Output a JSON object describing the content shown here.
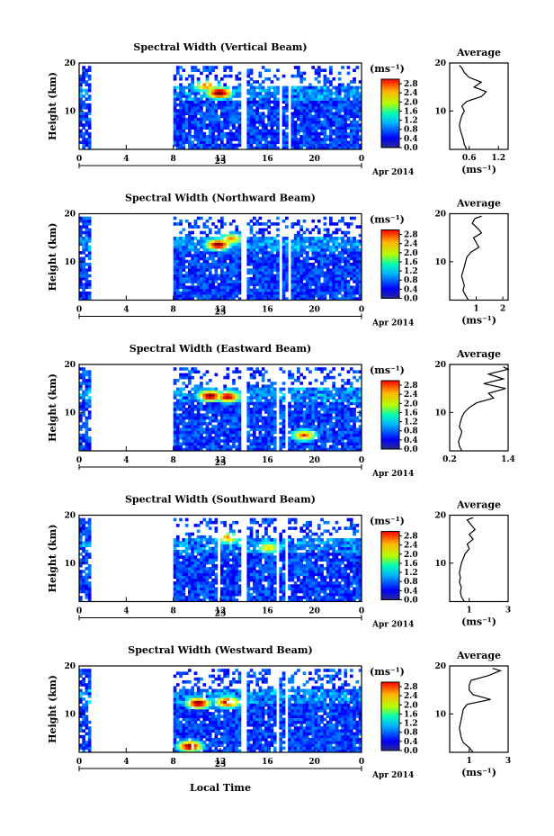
{
  "figure": {
    "xlabel_bottom": "Local Time"
  },
  "chart_data": [
    {
      "type": "heatmap",
      "title": "Spectral Width (Vertical Beam)",
      "ylabel": "Height (km)",
      "ylim": [
        2,
        20
      ],
      "xlim": [
        0,
        24
      ],
      "x_ticks": [
        "0",
        "4",
        "8",
        "12",
        "16",
        "20",
        "0"
      ],
      "y_ticks": [
        "10",
        "20"
      ],
      "date_label": "23",
      "month_label": "Apr 2014",
      "colorbar": {
        "unit": "(ms⁻¹)",
        "ticks": [
          "0.0",
          "0.4",
          "0.8",
          "1.2",
          "1.6",
          "2.0",
          "2.4",
          "2.8"
        ],
        "range": [
          0,
          3.0
        ]
      },
      "data_gaps_hours": [
        [
          1,
          8
        ],
        [
          13.6,
          14.1
        ],
        [
          16.8,
          17.1
        ],
        [
          17.6,
          17.8
        ]
      ],
      "hotspots": [
        {
          "x": 11.8,
          "y": 13.5,
          "value": 3.0
        },
        {
          "x": 10.7,
          "y": 15,
          "value": 2.0
        }
      ],
      "average_profile": {
        "title": "Average",
        "xlabel": "(ms⁻¹)",
        "xlim": [
          0.2,
          1.4
        ],
        "x_ticks": [
          "0.6",
          "1.2"
        ],
        "y_ticks": [
          "10",
          "20"
        ],
        "height_km": [
          2,
          3,
          4,
          5,
          6,
          7,
          8,
          9,
          10,
          11,
          12,
          13,
          14,
          15,
          16,
          17,
          18,
          19,
          19.5
        ],
        "width_ms": [
          0.55,
          0.5,
          0.48,
          0.45,
          0.42,
          0.4,
          0.42,
          0.45,
          0.5,
          0.45,
          0.55,
          0.85,
          0.95,
          0.7,
          0.85,
          0.6,
          0.5,
          0.45,
          0.4
        ]
      }
    },
    {
      "type": "heatmap",
      "title": "Spectral Width (Northward Beam)",
      "ylabel": "Height (km)",
      "ylim": [
        2,
        20
      ],
      "xlim": [
        0,
        24
      ],
      "x_ticks": [
        "0",
        "4",
        "8",
        "12",
        "16",
        "20",
        "0"
      ],
      "y_ticks": [
        "10",
        "20"
      ],
      "date_label": "23",
      "month_label": "Apr 2014",
      "colorbar": {
        "unit": "(ms⁻¹)",
        "ticks": [
          "0.0",
          "0.4",
          "0.8",
          "1.2",
          "1.6",
          "2.0",
          "2.4",
          "2.8"
        ],
        "range": [
          0,
          3.0
        ]
      },
      "data_gaps_hours": [
        [
          1,
          8
        ],
        [
          13.6,
          14.1
        ],
        [
          16.8,
          17.1
        ],
        [
          17.6,
          17.8
        ]
      ],
      "hotspots": [
        {
          "x": 11.7,
          "y": 13.3,
          "value": 2.8
        },
        {
          "x": 12.8,
          "y": 14.5,
          "value": 1.8
        }
      ],
      "average_profile": {
        "title": "Average",
        "xlabel": "(ms⁻¹)",
        "xlim": [
          0,
          2.2
        ],
        "x_ticks": [
          "1",
          "2"
        ],
        "y_ticks": [
          "10",
          "20"
        ],
        "height_km": [
          2,
          3,
          4,
          5,
          6,
          7,
          8,
          9,
          10,
          11,
          12,
          13,
          14,
          15,
          16,
          17,
          18,
          19,
          19.5
        ],
        "width_ms": [
          0.7,
          0.6,
          0.5,
          0.55,
          0.5,
          0.45,
          0.5,
          0.55,
          0.6,
          0.65,
          0.8,
          1.1,
          1.0,
          0.9,
          1.2,
          1.05,
          0.85,
          0.95,
          1.2
        ]
      }
    },
    {
      "type": "heatmap",
      "title": "Spectral Width (Eastward Beam)",
      "ylabel": "Height (km)",
      "ylim": [
        2,
        20
      ],
      "xlim": [
        0,
        24
      ],
      "x_ticks": [
        "0",
        "4",
        "8",
        "12",
        "16",
        "20",
        "0"
      ],
      "y_ticks": [
        "10",
        "20"
      ],
      "date_label": "23",
      "month_label": "Apr 2014",
      "colorbar": {
        "unit": "(ms⁻¹)",
        "ticks": [
          "0.0",
          "0.4",
          "0.8",
          "1.2",
          "1.6",
          "2.0",
          "2.4",
          "2.8"
        ],
        "range": [
          0,
          3.0
        ]
      },
      "data_gaps_hours": [
        [
          1,
          8
        ],
        [
          13.6,
          14.1
        ],
        [
          16.6,
          16.9
        ],
        [
          17.4,
          17.7
        ]
      ],
      "hotspots": [
        {
          "x": 11,
          "y": 13.2,
          "value": 2.8
        },
        {
          "x": 12.5,
          "y": 13,
          "value": 2.6
        },
        {
          "x": 19,
          "y": 5,
          "value": 2.0
        }
      ],
      "average_profile": {
        "title": "Average",
        "xlabel": "",
        "xlim": [
          0.2,
          1.4
        ],
        "x_ticks": [
          "0.2",
          "1.4"
        ],
        "y_ticks": [
          "10",
          "20"
        ],
        "height_km": [
          2,
          3,
          4,
          5,
          6,
          7,
          8,
          9,
          10,
          11,
          12,
          13,
          14,
          15,
          16,
          17,
          18,
          19,
          19.5
        ],
        "width_ms": [
          0.45,
          0.4,
          0.38,
          0.42,
          0.45,
          0.4,
          0.42,
          0.45,
          0.5,
          0.6,
          0.75,
          1.1,
          1.0,
          1.35,
          0.9,
          1.3,
          1.0,
          1.4,
          1.3
        ]
      }
    },
    {
      "type": "heatmap",
      "title": "Spectral Width (Southward Beam)",
      "ylabel": "Height (km)",
      "ylim": [
        2,
        20
      ],
      "xlim": [
        0,
        24
      ],
      "x_ticks": [
        "0",
        "4",
        "8",
        "12",
        "16",
        "20",
        "0"
      ],
      "y_ticks": [
        "10",
        "20"
      ],
      "date_label": "23",
      "month_label": "Apr 2014",
      "colorbar": {
        "unit": "(ms⁻¹)",
        "ticks": [
          "0.0",
          "0.4",
          "0.8",
          "1.2",
          "1.6",
          "2.0",
          "2.4",
          "2.8"
        ],
        "range": [
          0,
          3.0
        ]
      },
      "data_gaps_hours": [
        [
          1,
          8
        ],
        [
          11.6,
          11.8
        ],
        [
          13.6,
          14.1
        ],
        [
          16.6,
          16.9
        ],
        [
          17.5,
          17.7
        ]
      ],
      "hotspots": [
        {
          "x": 12.5,
          "y": 15,
          "value": 1.8
        },
        {
          "x": 16,
          "y": 13,
          "value": 1.6
        }
      ],
      "average_profile": {
        "title": "Average",
        "xlabel": "(ms⁻¹)",
        "xlim": [
          0,
          3
        ],
        "x_ticks": [
          "1",
          "3"
        ],
        "y_ticks": [
          "10",
          "20"
        ],
        "height_km": [
          2,
          3,
          4,
          5,
          6,
          7,
          8,
          9,
          10,
          11,
          12,
          13,
          14,
          15,
          16,
          17,
          18,
          19,
          19.5
        ],
        "width_ms": [
          0.75,
          0.6,
          0.55,
          0.6,
          0.5,
          0.55,
          0.5,
          0.55,
          0.6,
          0.7,
          0.8,
          1.0,
          0.9,
          1.2,
          1.0,
          1.3,
          1.1,
          0.9,
          1.2
        ]
      }
    },
    {
      "type": "heatmap",
      "title": "Spectral Width (Westward Beam)",
      "ylabel": "Height (km)",
      "ylim": [
        2,
        20
      ],
      "xlim": [
        0,
        24
      ],
      "x_ticks": [
        "0",
        "4",
        "8",
        "12",
        "16",
        "20",
        "0"
      ],
      "y_ticks": [
        "10",
        "20"
      ],
      "date_label": "23",
      "month_label": "Apr 2014",
      "colorbar": {
        "unit": "(ms⁻¹)",
        "ticks": [
          "0.0",
          "0.4",
          "0.8",
          "1.2",
          "1.6",
          "2.0",
          "2.4",
          "2.8"
        ],
        "range": [
          0,
          3.0
        ]
      },
      "data_gaps_hours": [
        [
          1,
          8
        ],
        [
          13.6,
          14.1
        ],
        [
          16.7,
          17.0
        ],
        [
          17.5,
          17.7
        ]
      ],
      "hotspots": [
        {
          "x": 10,
          "y": 12,
          "value": 2.8
        },
        {
          "x": 12.5,
          "y": 12.2,
          "value": 2.6
        },
        {
          "x": 9.3,
          "y": 3,
          "value": 2.8
        }
      ],
      "average_profile": {
        "title": "Average",
        "xlabel": "(ms⁻¹)",
        "xlim": [
          0,
          3
        ],
        "x_ticks": [
          "1",
          "3"
        ],
        "y_ticks": [
          "10",
          "20"
        ],
        "height_km": [
          2,
          3,
          4,
          5,
          6,
          7,
          8,
          9,
          10,
          11,
          12,
          13,
          14,
          15,
          16,
          17,
          18,
          19,
          19.5
        ],
        "width_ms": [
          1.2,
          1.0,
          0.7,
          0.6,
          0.55,
          0.5,
          0.55,
          0.6,
          0.65,
          0.7,
          0.9,
          2.1,
          1.2,
          1.0,
          1.0,
          1.1,
          2.0,
          2.6,
          2.2
        ]
      }
    }
  ]
}
